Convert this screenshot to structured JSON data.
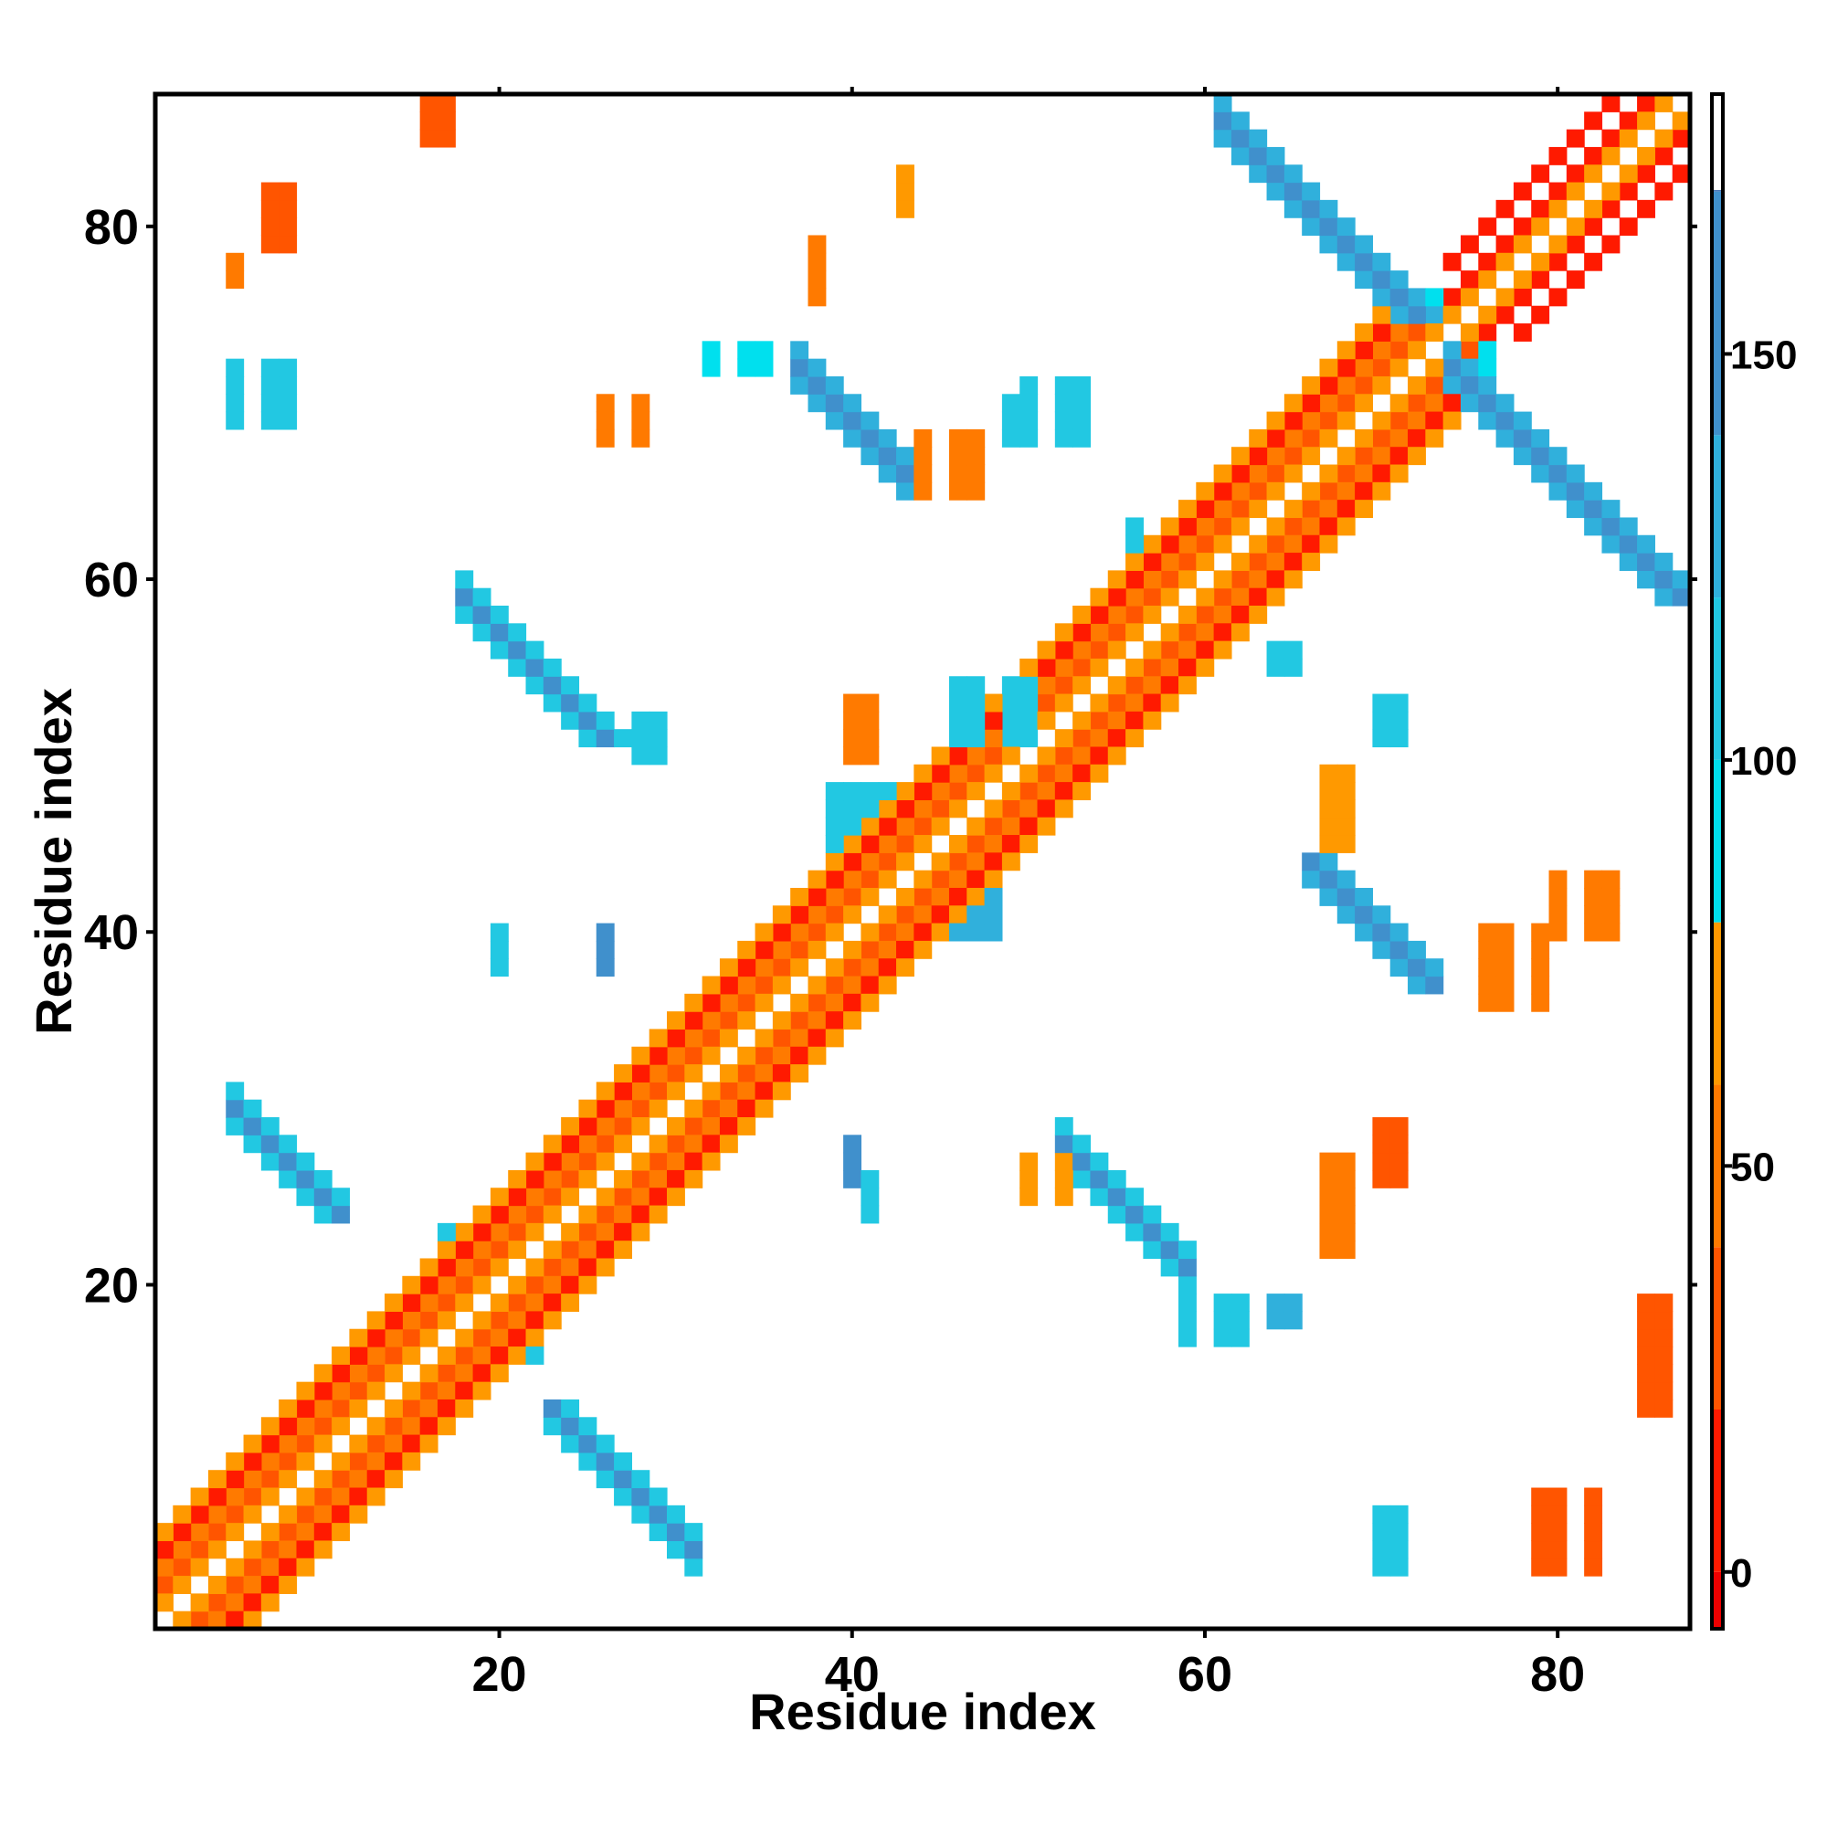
{
  "chart_data": {
    "type": "heatmap",
    "title": "",
    "xlabel": "Residue index",
    "ylabel": "Residue index",
    "xlim": [
      0.5,
      87.5
    ],
    "ylim": [
      0.5,
      87.5
    ],
    "x_ticks": [
      20,
      40,
      60,
      80
    ],
    "y_ticks": [
      20,
      40,
      60,
      80
    ],
    "colorbar": {
      "range": [
        -7,
        182
      ],
      "ticks": [
        0,
        50,
        100,
        150
      ],
      "bands": [
        {
          "from": -7,
          "to": 0,
          "color": "#ee0000"
        },
        {
          "from": 0,
          "to": 20,
          "color": "#ff1a00"
        },
        {
          "from": 20,
          "to": 40,
          "color": "#ff5500"
        },
        {
          "from": 40,
          "to": 60,
          "color": "#ff7a00"
        },
        {
          "from": 60,
          "to": 80,
          "color": "#ff9900"
        },
        {
          "from": 80,
          "to": 100,
          "color": "#00e0ee"
        },
        {
          "from": 100,
          "to": 120,
          "color": "#22c8e2"
        },
        {
          "from": 120,
          "to": 140,
          "color": "#30b0dc"
        },
        {
          "from": 140,
          "to": 170,
          "color": "#4090cc"
        },
        {
          "from": 170,
          "to": 182,
          "color": "#4a78b8"
        }
      ]
    },
    "grid": false,
    "legend": "colorbar-right",
    "cell_values": {
      "red": 10,
      "dark_orange": 30,
      "orange": 55,
      "light_orange": 70,
      "cyan": 90,
      "light_blue": 120,
      "steel_blue": 155
    },
    "regions": [
      {
        "note": "diagonal i,i+2 band",
        "diag_offset": 2,
        "i": [
          1,
          73
        ],
        "value": 20
      },
      {
        "note": "diagonal i,i+3 band",
        "diag_offset": 3,
        "i": [
          1,
          72
        ],
        "value": 45
      },
      {
        "note": "diagonal i,i+4 band",
        "diag_offset": 4,
        "i": [
          1,
          71
        ],
        "value": 15
      },
      {
        "note": "diagonal i,i+5 band",
        "diag_offset": 5,
        "i": [
          1,
          70
        ],
        "value": 60
      },
      {
        "note": "helix C-term diagonal",
        "diag_offset": 2,
        "i": [
          74,
          85
        ],
        "value": 10
      },
      {
        "note": "helix C-term diagonal",
        "diag_offset": 4,
        "i": [
          74,
          83
        ],
        "value": 10
      },
      {
        "blocks": [
          {
            "x": [
              1,
              4
            ],
            "y": [
              1,
              4
            ],
            "value": 40
          },
          {
            "x": [
              17,
              19
            ],
            "y": [
              19,
              23
            ],
            "value": 110
          },
          {
            "x": [
              20,
              22
            ],
            "y": [
              16,
              18
            ],
            "value": 115
          },
          {
            "x": [
              29,
              32
            ],
            "y": [
              29,
              34
            ],
            "value": 100
          },
          {
            "x": [
              33,
              35
            ],
            "y": [
              36,
              38
            ],
            "value": 90
          },
          {
            "x": [
              36,
              38
            ],
            "y": [
              33,
              35
            ],
            "value": 100
          },
          {
            "x": [
              44,
              48
            ],
            "y": [
              40,
              44
            ],
            "value": 120
          },
          {
            "x": [
              39,
              43
            ],
            "y": [
              45,
              48
            ],
            "value": 115
          },
          {
            "x": [
              49,
              53
            ],
            "y": [
              50,
              54
            ],
            "value": 105
          },
          {
            "x": [
              59,
              62
            ],
            "y": [
              59,
              64
            ],
            "value": 100
          },
          {
            "x": [
              62,
              66
            ],
            "y": [
              62,
              67
            ],
            "value": 60
          },
          {
            "x": [
              72,
              76
            ],
            "y": [
              72,
              76
            ],
            "value": 90
          }
        ]
      },
      {
        "antiparallel_strands": [
          {
            "sum": 35,
            "x": [
              5,
              11
            ],
            "y": [
              24,
              31
            ],
            "value": 150
          },
          {
            "sum": 36,
            "x": [
              23,
              31
            ],
            "y": [
              4,
              13
            ],
            "value": 150
          },
          {
            "sum": 77,
            "x": [
              18,
              27
            ],
            "y": [
              51,
              61
            ],
            "value": 150
          },
          {
            "sum": 80,
            "x": [
              52,
              59
            ],
            "y": [
              19,
              29
            ],
            "value": 150
          },
          {
            "sum": 109,
            "x": [
              37,
              43
            ],
            "y": [
              65,
              73
            ],
            "value": 155
          },
          {
            "sum": 110,
            "x": [
              66,
              73
            ],
            "y": [
              37,
              44
            ],
            "value": 155
          },
          {
            "sum": 147,
            "x": [
              61,
              73
            ],
            "y": [
              75,
              87
            ],
            "value": 155
          },
          {
            "sum": 146,
            "x": [
              74,
              87
            ],
            "y": [
              59,
              73
            ],
            "value": 155
          }
        ]
      },
      {
        "scattered": [
          {
            "x": [
              15,
              17
            ],
            "y": [
              85,
              87
            ],
            "value": 25
          },
          {
            "x": [
              6,
              8
            ],
            "y": [
              79,
              82
            ],
            "value": 20
          },
          {
            "x": [
              5,
              6
            ],
            "y": [
              77,
              78
            ],
            "value": 55
          },
          {
            "x": [
              5,
              8
            ],
            "y": [
              69,
              72
            ],
            "value": 110
          },
          {
            "x": [
              26,
              28
            ],
            "y": [
              68,
              70
            ],
            "value": 50
          },
          {
            "x": [
              42,
              43
            ],
            "y": [
              81,
              83
            ],
            "value": 60
          },
          {
            "x": [
              38,
              39
            ],
            "y": [
              76,
              79
            ],
            "value": 45
          },
          {
            "x": [
              44,
              47
            ],
            "y": [
              65,
              68
            ],
            "value": 50
          },
          {
            "x": [
              50,
              53
            ],
            "y": [
              69,
              71
            ],
            "value": 110
          },
          {
            "x": [
              40,
              42
            ],
            "y": [
              50,
              53
            ],
            "value": 55
          },
          {
            "x": [
              46,
              50
            ],
            "y": [
              51,
              54
            ],
            "value": 100
          },
          {
            "x": [
              28,
              29
            ],
            "y": [
              50,
              52
            ],
            "value": 105
          },
          {
            "x": [
              20,
              21
            ],
            "y": [
              38,
              40
            ],
            "value": 110
          },
          {
            "x": [
              26,
              27
            ],
            "y": [
              38,
              40
            ],
            "value": 155
          },
          {
            "x": [
              39,
              40
            ],
            "y": [
              26,
              28
            ],
            "value": 150
          },
          {
            "x": [
              41,
              42
            ],
            "y": [
              24,
              26
            ],
            "value": 115
          },
          {
            "x": [
              50,
              52
            ],
            "y": [
              25,
              27
            ],
            "value": 60
          },
          {
            "x": [
              59,
              62
            ],
            "y": [
              17,
              19
            ],
            "value": 100
          },
          {
            "x": [
              64,
              65
            ],
            "y": [
              18,
              19
            ],
            "value": 120
          },
          {
            "x": [
              66,
              69
            ],
            "y": [
              22,
              27
            ],
            "value": 40
          },
          {
            "x": [
              69,
              72
            ],
            "y": [
              26,
              29
            ],
            "value": 35
          },
          {
            "x": [
              69,
              72
            ],
            "y": [
              4,
              7
            ],
            "value": 110
          },
          {
            "x": [
              79,
              82
            ],
            "y": [
              4,
              8
            ],
            "value": 20
          },
          {
            "x": [
              84,
              87
            ],
            "y": [
              13,
              19
            ],
            "value": 25
          },
          {
            "x": [
              75,
              79
            ],
            "y": [
              36,
              40
            ],
            "value": 40
          },
          {
            "x": [
              80,
              84
            ],
            "y": [
              40,
              43
            ],
            "value": 50
          },
          {
            "x": [
              66,
              69
            ],
            "y": [
              45,
              49
            ],
            "value": 60
          },
          {
            "x": [
              69,
              71
            ],
            "y": [
              51,
              53
            ],
            "value": 105
          },
          {
            "x": [
              64,
              65
            ],
            "y": [
              55,
              56
            ],
            "value": 110
          },
          {
            "x": [
              56,
              57
            ],
            "y": [
              62,
              63
            ],
            "value": 115
          },
          {
            "x": [
              49,
              53
            ],
            "y": [
              68,
              70
            ],
            "value": 115
          },
          {
            "x": [
              32,
              35
            ],
            "y": [
              72,
              73
            ],
            "value": 80
          }
        ]
      }
    ]
  }
}
